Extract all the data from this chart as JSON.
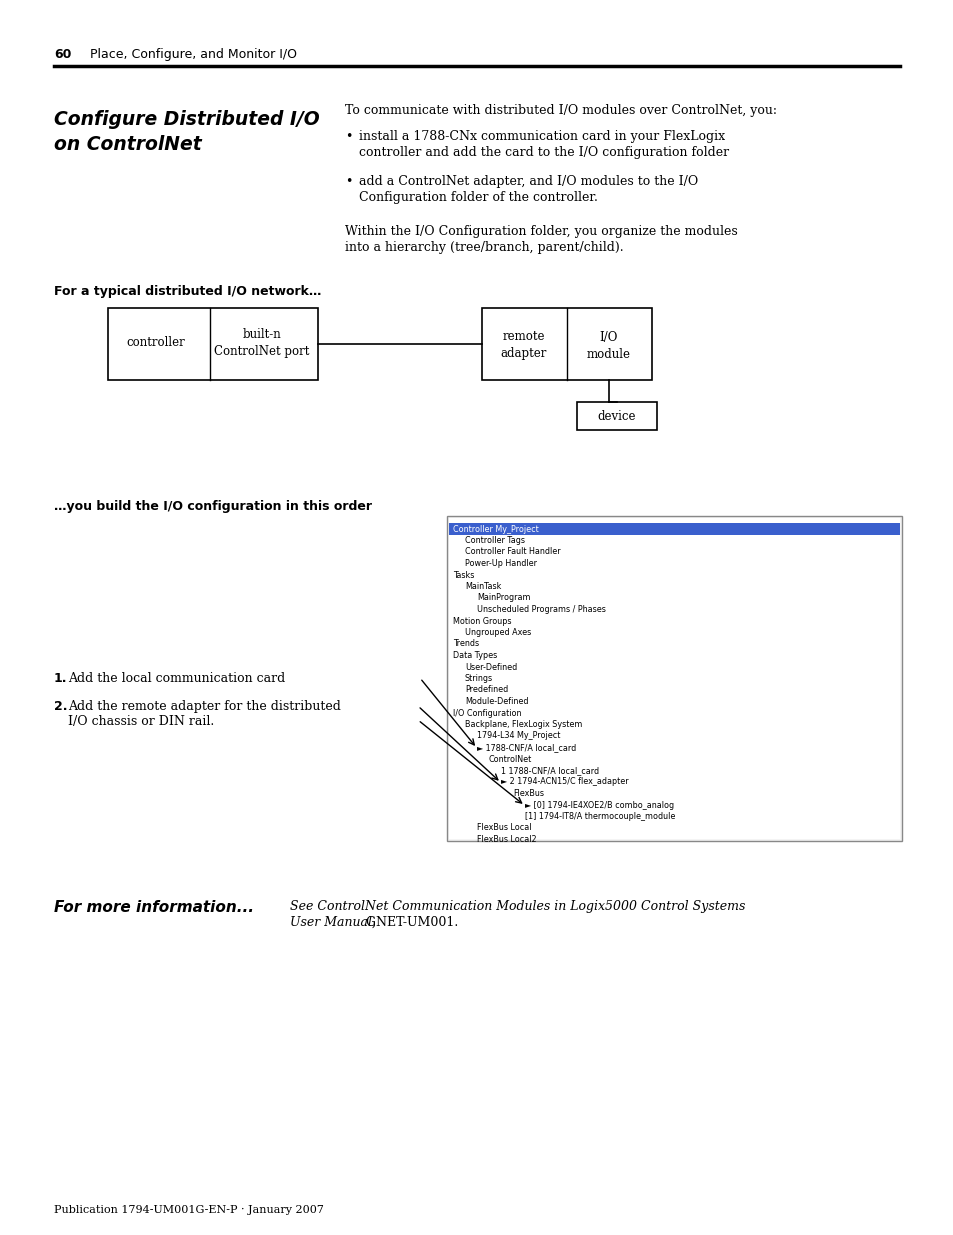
{
  "page_num": "60",
  "page_header": "Place, Configure, and Monitor I/O",
  "section_title1": "Configure Distributed I/O",
  "section_title2": "on ControlNet",
  "intro_text": "To communicate with distributed I/O modules over ControlNet, you:",
  "bullet1_line1": "install a 1788-CNx communication card in your FlexLogix",
  "bullet1_line2": "controller and add the card to the I/O configuration folder",
  "bullet2_line1": "add a ControlNet adapter, and I/O modules to the I/O",
  "bullet2_line2": "Configuration folder of the controller.",
  "para_text_line1": "Within the I/O Configuration folder, you organize the modules",
  "para_text_line2": "into a hierarchy (tree/branch, parent/child).",
  "diagram_label": "For a typical distributed I/O network…",
  "order_label": "…you build the I/O configuration in this order",
  "step1_text": "Add the local communication card",
  "step2_text1": "Add the remote adapter for the distributed",
  "step2_text2": "I/O chassis or DIN rail.",
  "footer_text": "Publication 1794-UM001G-EN-P · January 2007",
  "more_info_bold": "For more information...",
  "more_info_italic1": "See ControlNet Communication Modules in Logix5000 Control Systems",
  "more_info_italic2": "User Manual,",
  "more_info_plain": " GNET-UM001.",
  "bg_color": "#ffffff",
  "highlight_color": "#3a5fcd",
  "tree_border": "#aaaaaa",
  "tree_bg": "#f4f4f4"
}
